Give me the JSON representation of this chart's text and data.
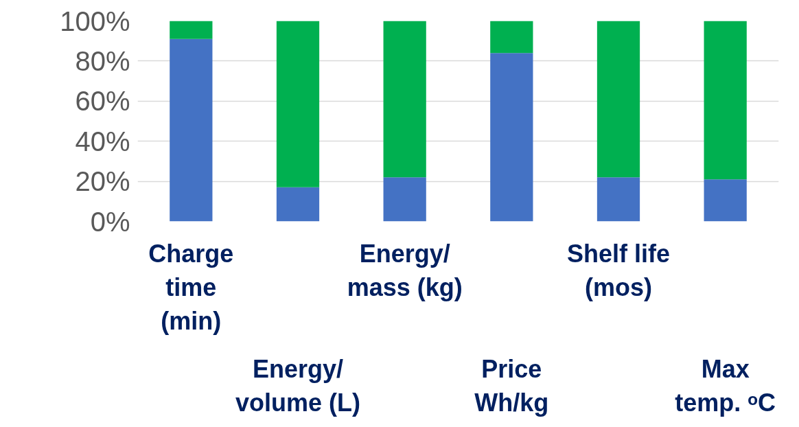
{
  "chart_data": {
    "type": "bar",
    "stacked": true,
    "categories": [
      "Charge\ntime\n(min)",
      "Energy/\nvolume (L)",
      "Energy/\nmass (kg)",
      "Price\nWh/kg",
      "Shelf life\n(mos)",
      "Max\ntemp. ᵒC"
    ],
    "series": [
      {
        "color": "#4472c4",
        "values": [
          91,
          17,
          22,
          84,
          22,
          21
        ]
      },
      {
        "color": "#00b050",
        "values": [
          9,
          83,
          78,
          16,
          78,
          79
        ]
      }
    ],
    "ylim": [
      0,
      100
    ],
    "yticks": [
      {
        "value": 0,
        "label": "0%"
      },
      {
        "value": 20,
        "label": "20%"
      },
      {
        "value": 40,
        "label": "40%"
      },
      {
        "value": 60,
        "label": "60%"
      },
      {
        "value": 80,
        "label": "80%"
      },
      {
        "value": 100,
        "label": "100%"
      }
    ],
    "grid": "y"
  }
}
